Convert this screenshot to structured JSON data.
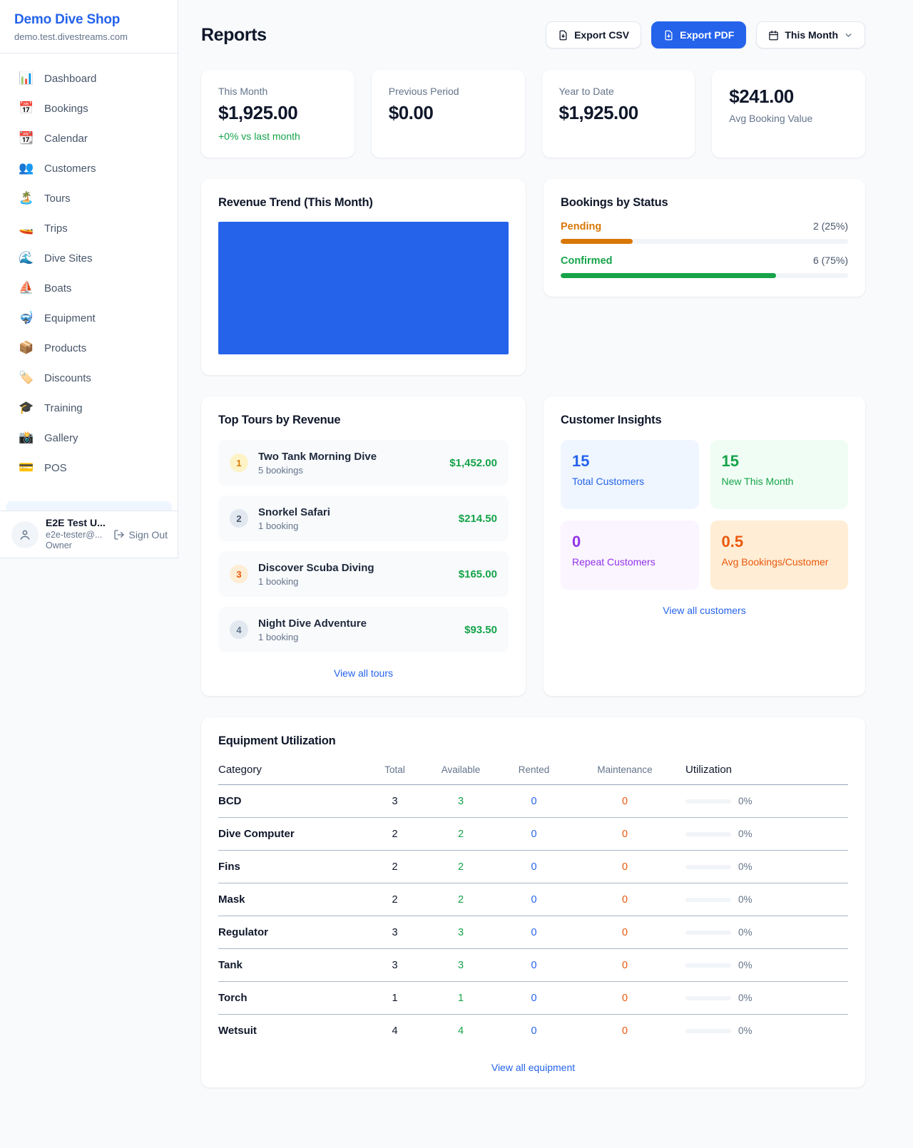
{
  "theme": {
    "accent": "#2563eb",
    "positive": "#16a34a",
    "pending_orange": "#d97706",
    "maintenance_orange": "#ea580c",
    "background": "#f8fafc"
  },
  "sidebar": {
    "brand": {
      "name": "Demo Dive Shop",
      "domain": "demo.test.divestreams.com"
    },
    "nav": [
      {
        "id": "dashboard",
        "icon": "📊",
        "label": "Dashboard"
      },
      {
        "id": "bookings",
        "icon": "📅",
        "label": "Bookings"
      },
      {
        "id": "calendar",
        "icon": "📆",
        "label": "Calendar"
      },
      {
        "id": "customers",
        "icon": "👥",
        "label": "Customers"
      },
      {
        "id": "tours",
        "icon": "🏝️",
        "label": "Tours"
      },
      {
        "id": "trips",
        "icon": "🚤",
        "label": "Trips"
      },
      {
        "id": "dive-sites",
        "icon": "🌊",
        "label": "Dive Sites"
      },
      {
        "id": "boats",
        "icon": "⛵",
        "label": "Boats"
      },
      {
        "id": "equipment",
        "icon": "🤿",
        "label": "Equipment"
      },
      {
        "id": "products",
        "icon": "📦",
        "label": "Products"
      },
      {
        "id": "discounts",
        "icon": "🏷️",
        "label": "Discounts"
      },
      {
        "id": "training",
        "icon": "🎓",
        "label": "Training"
      },
      {
        "id": "gallery",
        "icon": "📸",
        "label": "Gallery"
      },
      {
        "id": "pos",
        "icon": "💳",
        "label": "POS"
      }
    ],
    "user": {
      "name": "E2E Test U...",
      "email": "e2e-tester@...",
      "role": "Owner",
      "sign_out_label": "Sign Out"
    }
  },
  "header": {
    "title": "Reports",
    "export_csv": "Export CSV",
    "export_pdf": "Export PDF",
    "period": "This Month"
  },
  "stats": [
    {
      "label": "This Month",
      "value": "$1,925.00",
      "delta": "+0% vs last month",
      "layout": "label-first"
    },
    {
      "label": "Previous Period",
      "value": "$0.00",
      "layout": "label-first"
    },
    {
      "label": "Year to Date",
      "value": "$1,925.00",
      "layout": "label-first"
    },
    {
      "label": "Avg Booking Value",
      "value": "$241.00",
      "layout": "value-first"
    }
  ],
  "revenue_trend": {
    "title": "Revenue Trend (This Month)"
  },
  "bookings_by_status": {
    "title": "Bookings by Status",
    "rows": [
      {
        "label": "Pending",
        "count_text": "2 (25%)",
        "percent": 25,
        "color": "#d97706"
      },
      {
        "label": "Confirmed",
        "count_text": "6 (75%)",
        "percent": 75,
        "color": "#16a34a"
      }
    ]
  },
  "top_tours": {
    "title": "Top Tours by Revenue",
    "items": [
      {
        "rank": "1",
        "name": "Two Tank Morning Dive",
        "bookings": "5 bookings",
        "amount": "$1,452.00",
        "badge_bg": "#fef3c7",
        "badge_fg": "#d97706"
      },
      {
        "rank": "2",
        "name": "Snorkel Safari",
        "bookings": "1 booking",
        "amount": "$214.50",
        "badge_bg": "#e2e8f0",
        "badge_fg": "#475569"
      },
      {
        "rank": "3",
        "name": "Discover Scuba Diving",
        "bookings": "1 booking",
        "amount": "$165.00",
        "badge_bg": "#ffedd5",
        "badge_fg": "#ea580c"
      },
      {
        "rank": "4",
        "name": "Night Dive Adventure",
        "bookings": "1 booking",
        "amount": "$93.50",
        "badge_bg": "#e2e8f0",
        "badge_fg": "#64748b"
      }
    ],
    "link": "View all tours"
  },
  "customer_insights": {
    "title": "Customer Insights",
    "tiles": [
      {
        "value": "15",
        "label": "Total Customers",
        "bg": "#eff6ff",
        "fg": "#2563eb"
      },
      {
        "value": "15",
        "label": "New This Month",
        "bg": "#f0fdf4",
        "fg": "#16a34a"
      },
      {
        "value": "0",
        "label": "Repeat Customers",
        "bg": "#faf5ff",
        "fg": "#9333ea"
      },
      {
        "value": "0.5",
        "label": "Avg Bookings/Customer",
        "bg": "#ffedd5",
        "fg": "#ea580c"
      }
    ],
    "link": "View all customers"
  },
  "equipment": {
    "title": "Equipment Utilization",
    "columns": [
      "Category",
      "Total",
      "Available",
      "Rented",
      "Maintenance",
      "Utilization"
    ],
    "rows": [
      {
        "category": "BCD",
        "total": "3",
        "available": "3",
        "rented": "0",
        "maintenance": "0",
        "utilization": "0%",
        "utilization_pct": 0
      },
      {
        "category": "Dive Computer",
        "total": "2",
        "available": "2",
        "rented": "0",
        "maintenance": "0",
        "utilization": "0%",
        "utilization_pct": 0
      },
      {
        "category": "Fins",
        "total": "2",
        "available": "2",
        "rented": "0",
        "maintenance": "0",
        "utilization": "0%",
        "utilization_pct": 0
      },
      {
        "category": "Mask",
        "total": "2",
        "available": "2",
        "rented": "0",
        "maintenance": "0",
        "utilization": "0%",
        "utilization_pct": 0
      },
      {
        "category": "Regulator",
        "total": "3",
        "available": "3",
        "rented": "0",
        "maintenance": "0",
        "utilization": "0%",
        "utilization_pct": 0
      },
      {
        "category": "Tank",
        "total": "3",
        "available": "3",
        "rented": "0",
        "maintenance": "0",
        "utilization": "0%",
        "utilization_pct": 0
      },
      {
        "category": "Torch",
        "total": "1",
        "available": "1",
        "rented": "0",
        "maintenance": "0",
        "utilization": "0%",
        "utilization_pct": 0
      },
      {
        "category": "Wetsuit",
        "total": "4",
        "available": "4",
        "rented": "0",
        "maintenance": "0",
        "utilization": "0%",
        "utilization_pct": 0
      }
    ],
    "link": "View all equipment"
  }
}
